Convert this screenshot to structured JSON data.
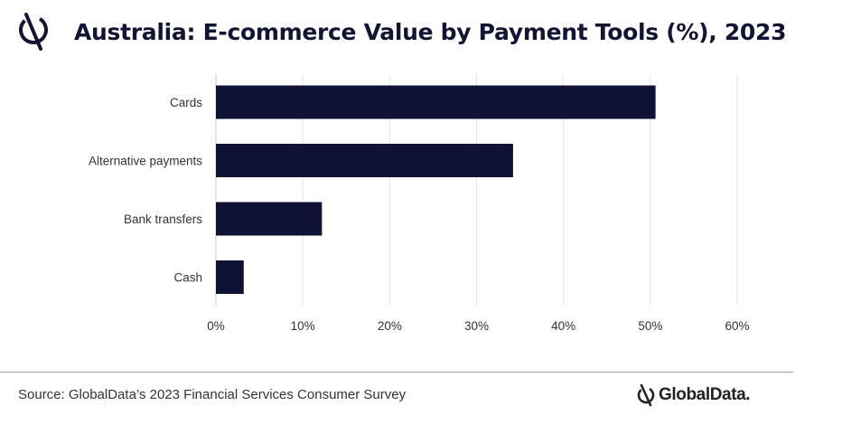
{
  "header": {
    "title": "Australia: E-commerce Value by Payment Tools (%), 2023",
    "logo_icon": "globaldata-logo-icon"
  },
  "footer": {
    "source": "Source: GlobalData’s 2023 Financial Services Consumer Survey",
    "brand": "GlobalData."
  },
  "colors": {
    "bar": "#0f1235",
    "grid": "#e2e2e2",
    "text": "#333333"
  },
  "chart_data": {
    "type": "bar",
    "orientation": "horizontal",
    "categories": [
      "Cards",
      "Alternative payments",
      "Bank transfers",
      "Cash"
    ],
    "values": [
      50.6,
      34.2,
      12.2,
      3.2
    ],
    "x_ticks": [
      "0%",
      "10%",
      "20%",
      "30%",
      "40%",
      "50%",
      "60%"
    ],
    "xlim": [
      0,
      60
    ],
    "grid": true,
    "legend": "none"
  }
}
